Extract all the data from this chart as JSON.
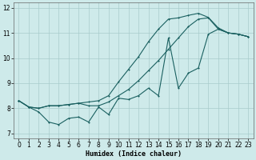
{
  "xlabel": "Humidex (Indice chaleur)",
  "bg_color": "#ceeaea",
  "grid_color": "#a8cccc",
  "line_color": "#1a6060",
  "xlim": [
    -0.5,
    23.5
  ],
  "ylim": [
    6.8,
    12.2
  ],
  "xticks": [
    0,
    1,
    2,
    3,
    4,
    5,
    6,
    7,
    8,
    9,
    10,
    11,
    12,
    13,
    14,
    15,
    16,
    17,
    18,
    19,
    20,
    21,
    22,
    23
  ],
  "yticks": [
    7,
    8,
    9,
    10,
    11,
    12
  ],
  "line1_x": [
    0,
    1,
    2,
    3,
    4,
    5,
    6,
    7,
    8,
    9,
    10,
    11,
    12,
    13,
    14,
    15,
    16,
    17,
    18,
    19,
    20,
    21,
    22,
    23
  ],
  "line1_y": [
    8.3,
    8.05,
    7.85,
    7.45,
    7.35,
    7.6,
    7.65,
    7.45,
    8.05,
    7.75,
    8.4,
    8.35,
    8.5,
    8.8,
    8.5,
    10.8,
    8.8,
    9.4,
    9.6,
    10.95,
    11.15,
    11.0,
    10.95,
    10.85
  ],
  "line2_x": [
    0,
    1,
    2,
    3,
    4,
    5,
    6,
    7,
    8,
    9,
    10,
    11,
    12,
    13,
    14,
    15,
    16,
    17,
    18,
    19,
    20,
    21,
    22,
    23
  ],
  "line2_y": [
    8.3,
    8.05,
    8.0,
    8.1,
    8.1,
    8.15,
    8.2,
    8.1,
    8.1,
    8.25,
    8.5,
    8.75,
    9.1,
    9.5,
    9.9,
    10.35,
    10.8,
    11.25,
    11.55,
    11.6,
    11.15,
    11.0,
    10.95,
    10.85
  ],
  "line3_x": [
    0,
    1,
    2,
    3,
    4,
    5,
    6,
    7,
    8,
    9,
    10,
    11,
    12,
    13,
    14,
    15,
    16,
    17,
    18,
    19,
    20,
    21,
    22,
    23
  ],
  "line3_y": [
    8.3,
    8.05,
    8.0,
    8.1,
    8.1,
    8.15,
    8.2,
    8.25,
    8.3,
    8.5,
    9.05,
    9.55,
    10.05,
    10.65,
    11.15,
    11.55,
    11.6,
    11.7,
    11.78,
    11.62,
    11.2,
    11.0,
    10.95,
    10.85
  ]
}
